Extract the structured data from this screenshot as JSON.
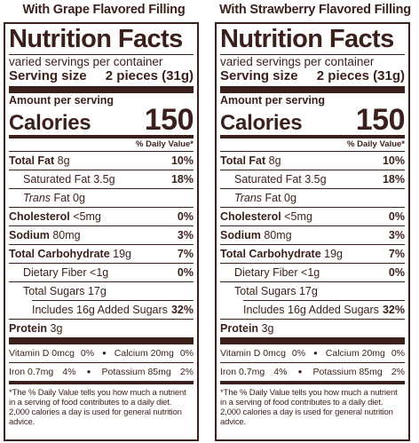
{
  "variants": [
    {
      "heading": "With Grape Flavored Filling",
      "label": {
        "title": "Nutrition Facts",
        "servings": "varied servings per container",
        "serving_size_label": "Serving size",
        "serving_size_value": "2 pieces (31g)",
        "amount_per_serving": "Amount per serving",
        "calories_label": "Calories",
        "calories_value": "150",
        "dv_header": "% Daily Value*",
        "total_fat_label": "Total Fat",
        "total_fat_amount": "8g",
        "total_fat_dv": "10%",
        "sat_fat_label": "Saturated Fat 3.5g",
        "sat_fat_dv": "18%",
        "trans_fat_label": "Trans",
        "trans_fat_rest": "Fat 0g",
        "cholesterol_label": "Cholesterol",
        "cholesterol_amount": "<5mg",
        "cholesterol_dv": "0%",
        "sodium_label": "Sodium",
        "sodium_amount": "80mg",
        "sodium_dv": "3%",
        "carb_label": "Total Carbohydrate",
        "carb_amount": "19g",
        "carb_dv": "7%",
        "fiber_label": "Dietary Fiber <1g",
        "fiber_dv": "0%",
        "sugars_label": "Total Sugars 17g",
        "added_sugars_label": "Includes 16g Added Sugars",
        "added_sugars_dv": "32%",
        "protein_label": "Protein",
        "protein_amount": "3g",
        "vit_d": "Vitamin D 0mcg",
        "vit_d_dv": "0%",
        "calcium": "Calcium 20mg",
        "calcium_dv": "0%",
        "iron": "Iron 0.7mg",
        "iron_dv": "4%",
        "potassium": "Potassium 85mg",
        "potassium_dv": "2%",
        "footnote": "*The % Daily Value tells you how much a nutrient in a serving of food contributes to a daily diet. 2,000 calories a day is used for general nutrition advice."
      }
    },
    {
      "heading": "With Strawberry Flavored Filling",
      "label": {
        "title": "Nutrition Facts",
        "servings": "varied servings per container",
        "serving_size_label": "Serving size",
        "serving_size_value": "2 pieces (31g)",
        "amount_per_serving": "Amount per serving",
        "calories_label": "Calories",
        "calories_value": "150",
        "dv_header": "% Daily Value*",
        "total_fat_label": "Total Fat",
        "total_fat_amount": "8g",
        "total_fat_dv": "10%",
        "sat_fat_label": "Saturated Fat 3.5g",
        "sat_fat_dv": "18%",
        "trans_fat_label": "Trans",
        "trans_fat_rest": "Fat 0g",
        "cholesterol_label": "Cholesterol",
        "cholesterol_amount": "<5mg",
        "cholesterol_dv": "0%",
        "sodium_label": "Sodium",
        "sodium_amount": "80mg",
        "sodium_dv": "3%",
        "carb_label": "Total Carbohydrate",
        "carb_amount": "19g",
        "carb_dv": "7%",
        "fiber_label": "Dietary Fiber <1g",
        "fiber_dv": "0%",
        "sugars_label": "Total Sugars 17g",
        "added_sugars_label": "Includes 16g Added Sugars",
        "added_sugars_dv": "32%",
        "protein_label": "Protein",
        "protein_amount": "3g",
        "vit_d": "Vitamin D 0mcg",
        "vit_d_dv": "0%",
        "calcium": "Calcium 20mg",
        "calcium_dv": "0%",
        "iron": "Iron 0.7mg",
        "iron_dv": "4%",
        "potassium": "Potassium 85mg",
        "potassium_dv": "2%",
        "footnote": "*The % Daily Value tells you how much a nutrient in a serving of food contributes to a daily diet. 2,000 calories a day is used for general nutrition advice."
      }
    }
  ],
  "colors": {
    "ink": "#3a1f1a",
    "background": "#ffffff"
  }
}
